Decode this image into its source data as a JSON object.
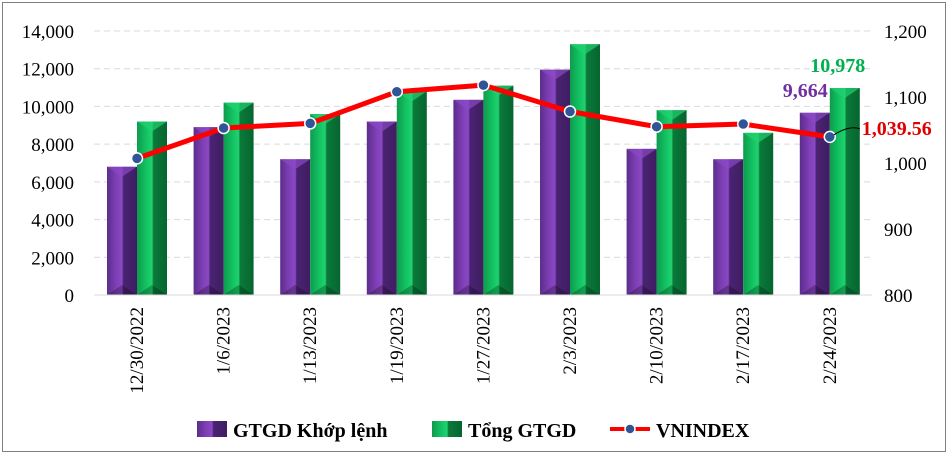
{
  "chart_data": {
    "type": "bar",
    "categories": [
      "12/30/2022",
      "1/6/2023",
      "1/13/2023",
      "1/19/2023",
      "1/27/2023",
      "2/3/2023",
      "2/10/2023",
      "2/17/2023",
      "2/24/2023"
    ],
    "series": [
      {
        "name": "GTGD Khớp lệnh",
        "type": "bar",
        "axis": "left",
        "color": "#7030a0",
        "values": [
          6800,
          8900,
          7200,
          9200,
          10350,
          11950,
          7750,
          7200,
          9664
        ]
      },
      {
        "name": "Tổng GTGD",
        "type": "bar",
        "axis": "left",
        "color": "#00b050",
        "values": [
          9200,
          10200,
          9600,
          10800,
          11100,
          13300,
          9800,
          8600,
          10978
        ]
      },
      {
        "name": "VNINDEX",
        "type": "line",
        "axis": "right",
        "color": "#ff0000",
        "marker_color": "#2f5597",
        "values": [
          1007,
          1053,
          1060,
          1108,
          1118,
          1078,
          1055,
          1059,
          1039.56
        ]
      }
    ],
    "y_left": {
      "range": [
        0,
        14000
      ],
      "ticks": [
        "0",
        "2,000",
        "4,000",
        "6,000",
        "8,000",
        "10,000",
        "12,000",
        "14,000"
      ]
    },
    "y_right": {
      "range": [
        800,
        1200
      ],
      "ticks": [
        "800",
        "900",
        "1,000",
        "1,100",
        "1,200"
      ]
    },
    "data_labels": {
      "purple_last": "9,664",
      "green_last": "10,978",
      "line_last": "1,039.56"
    },
    "grid": "horizontal dashed",
    "legend": "bottom"
  }
}
